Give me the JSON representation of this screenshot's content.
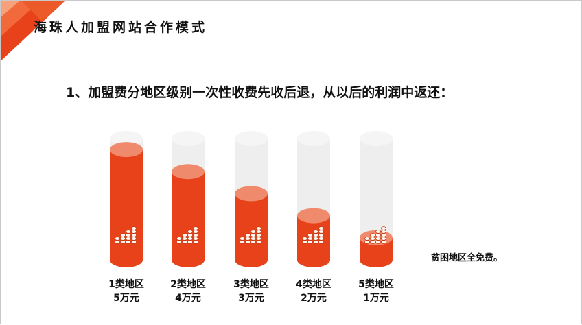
{
  "slide": {
    "title": "海珠人加盟网站合作模式",
    "point": "1、加盟费分地区级别一次性收费先收后退，从以后的利润中返还：",
    "note": "贫困地区全免费。"
  },
  "colors": {
    "accent": "#e8421a",
    "accent_top": "#ef8a6c",
    "empty_body": "#eeeeee",
    "empty_top": "#f5f5f5"
  },
  "chart_data": {
    "type": "bar",
    "title": "",
    "xlabel": "",
    "ylabel": "",
    "categories": [
      "1类地区",
      "2类地区",
      "3类地区",
      "4类地区",
      "5类地区"
    ],
    "value_labels": [
      "5万元",
      "4万元",
      "3万元",
      "2万元",
      "1万元"
    ],
    "values": [
      5,
      4,
      3,
      2,
      1
    ],
    "ylim": [
      0,
      5.5
    ],
    "grid": false,
    "legend": "none",
    "style": "3d-cylinder"
  }
}
